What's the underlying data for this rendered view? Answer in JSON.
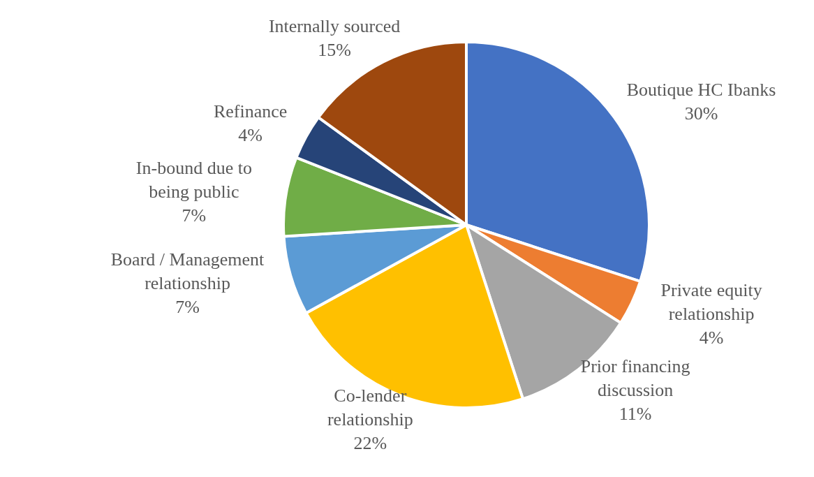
{
  "chart_data": {
    "type": "pie",
    "categories": [
      "Boutique HC Ibanks",
      "Private equity relationship",
      "Prior financing discussion",
      "Co-lender relationship",
      "Board / Management relationship",
      "In-bound due to being public",
      "Refinance",
      "Internally sourced"
    ],
    "values": [
      30,
      4,
      11,
      22,
      7,
      7,
      4,
      15
    ],
    "value_labels": [
      "30%",
      "4%",
      "11%",
      "22%",
      "7%",
      "7%",
      "4%",
      "15%"
    ],
    "colors": [
      "#4472c4",
      "#ed7d31",
      "#a5a5a5",
      "#ffc000",
      "#5b9bd5",
      "#70ad47",
      "#264478",
      "#9e480e"
    ]
  }
}
